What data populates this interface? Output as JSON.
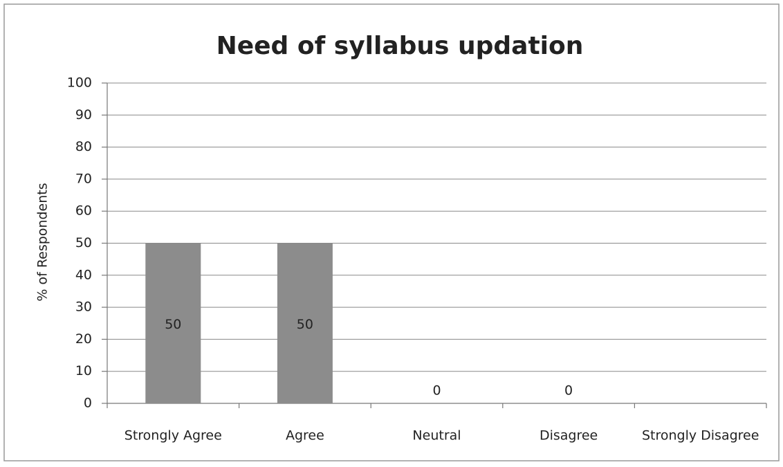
{
  "chart_data": {
    "type": "bar",
    "title": "Need of syllabus updation",
    "y_label": "% of Respondents",
    "categories": [
      "Strongly Agree",
      "Agree",
      "Neutral",
      "Disagree",
      "Strongly Disagree"
    ],
    "values": [
      50,
      50,
      0,
      0,
      null
    ],
    "color": "#8c8c8c",
    "ylim": [
      0,
      100
    ],
    "yticks": [
      0,
      10,
      20,
      30,
      40,
      50,
      60,
      70,
      80,
      90,
      100
    ],
    "grid": true
  }
}
